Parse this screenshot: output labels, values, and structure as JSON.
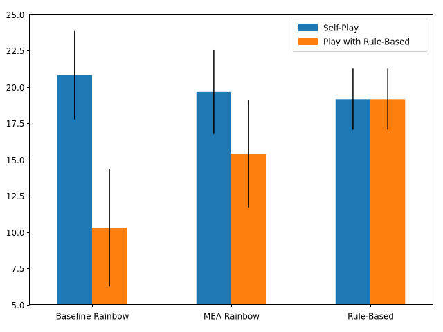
{
  "chart_data": {
    "type": "bar",
    "title": "",
    "xlabel": "",
    "ylabel": "",
    "categories": [
      "Baseline Rainbow",
      "MEA Rainbow",
      "Rule-Based"
    ],
    "ylim": [
      5.0,
      25.0
    ],
    "yticks": [
      "5.0",
      "7.5",
      "10.0",
      "12.5",
      "15.0",
      "17.5",
      "20.0",
      "22.5",
      "25.0"
    ],
    "grid": false,
    "legend_position": "top-right",
    "series": [
      {
        "name": "Self-Play",
        "color": "#1f77b4",
        "values": [
          20.8,
          19.65,
          19.15
        ],
        "errors": [
          3.05,
          2.9,
          2.1
        ]
      },
      {
        "name": "Play with Rule-Based",
        "color": "#ff7f0e",
        "values": [
          10.3,
          15.4,
          19.15
        ],
        "errors": [
          4.05,
          3.7,
          2.1
        ]
      }
    ],
    "error_bar_color": "#000000"
  }
}
